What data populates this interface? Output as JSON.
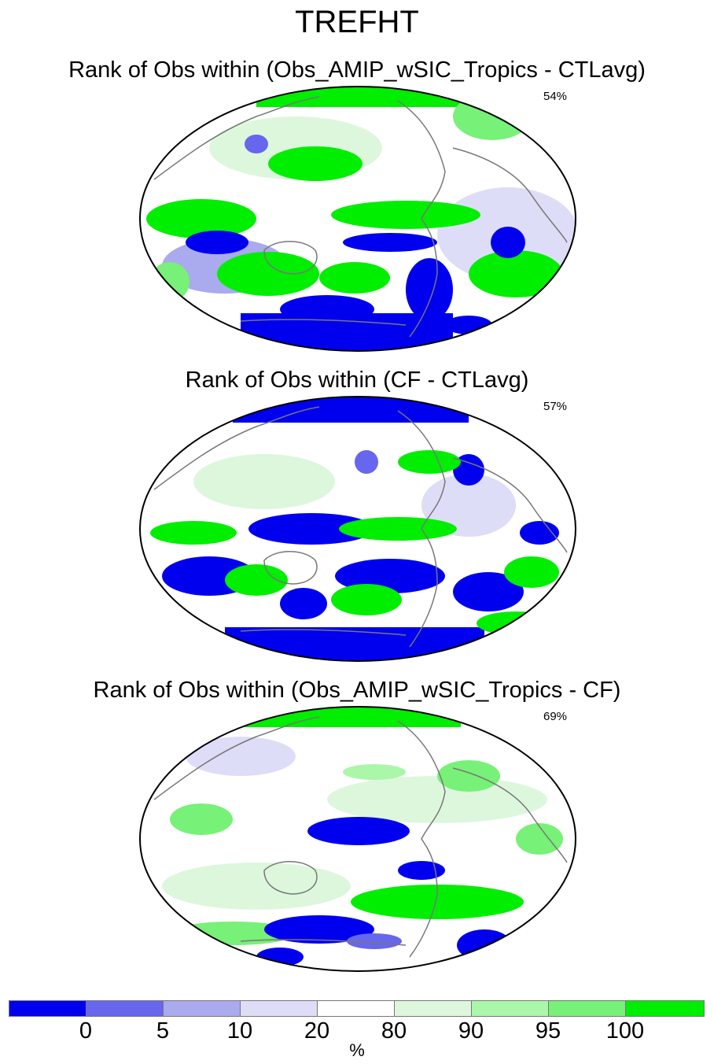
{
  "title": "TREFHT",
  "panels": [
    {
      "title": "Rank of Obs within (Obs_AMIP_wSIC_Tropics - CTLavg)",
      "pct": "54%"
    },
    {
      "title": "Rank of Obs within (CF - CTLavg)",
      "pct": "57%"
    },
    {
      "title": "Rank of Obs within (Obs_AMIP_wSIC_Tropics - CF)",
      "pct": "69%"
    }
  ],
  "colorbar": {
    "colors": [
      "#0000ee",
      "#6666ee",
      "#aaaaee",
      "#ddddf7",
      "#ffffff",
      "#ddf7dd",
      "#aaf7aa",
      "#77f177",
      "#00ee00"
    ],
    "labels": [
      "0",
      "5",
      "10",
      "20",
      "80",
      "90",
      "95",
      "100"
    ],
    "unit": "%"
  }
}
